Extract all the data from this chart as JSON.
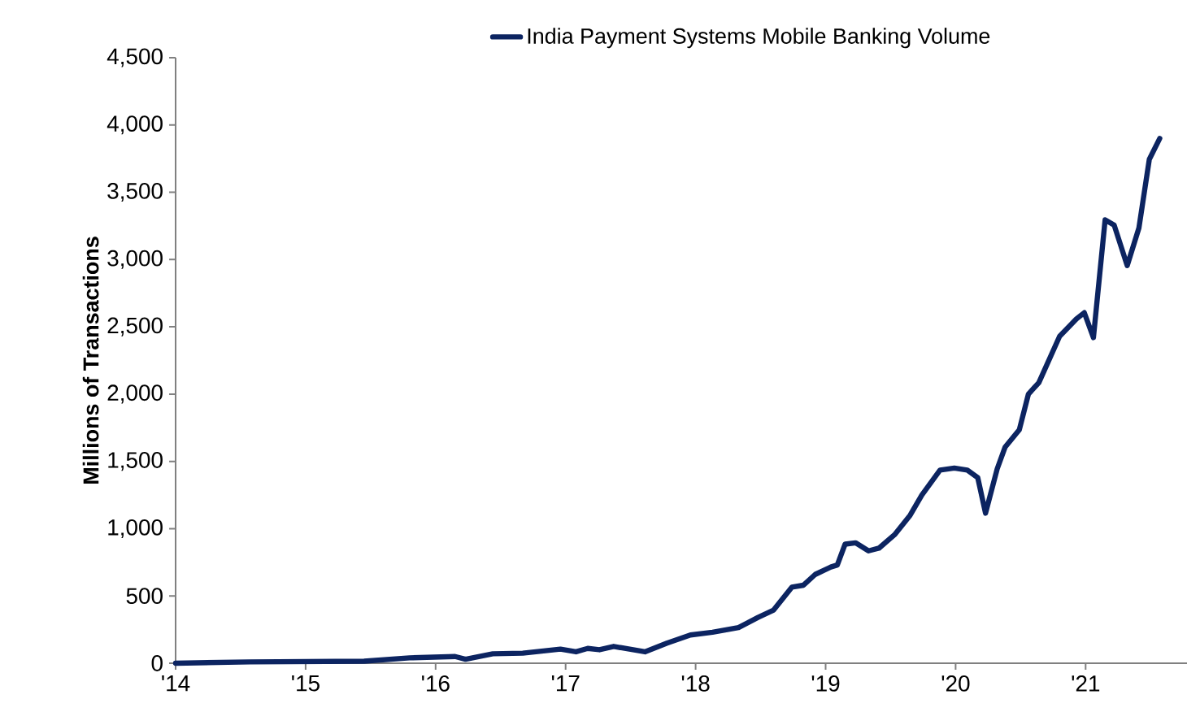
{
  "chart_data": {
    "type": "line",
    "ylabel": "Millions of Transactions",
    "legend": "top",
    "xlim": [
      2014,
      2021.78
    ],
    "ylim": [
      0,
      4500
    ],
    "xticks": [
      {
        "value": 2014,
        "label": "'14"
      },
      {
        "value": 2015,
        "label": "'15"
      },
      {
        "value": 2016,
        "label": "'16"
      },
      {
        "value": 2017,
        "label": "'17"
      },
      {
        "value": 2018,
        "label": "'18"
      },
      {
        "value": 2019,
        "label": "'19"
      },
      {
        "value": 2020,
        "label": "'20"
      },
      {
        "value": 2021,
        "label": "'21"
      }
    ],
    "yticks": [
      0,
      500,
      {
        "value": 1000,
        "label": "1,000"
      },
      {
        "value": 1500,
        "label": "1,500"
      },
      {
        "value": 2000,
        "label": "2,000"
      },
      {
        "value": 2500,
        "label": "2,500"
      },
      {
        "value": 3000,
        "label": "3,000"
      },
      {
        "value": 3500,
        "label": "3,500"
      },
      {
        "value": 4000,
        "label": "4,000"
      },
      {
        "value": 4500,
        "label": "4,500"
      }
    ],
    "series": [
      {
        "name": "India Payment Systems Mobile Banking Volume",
        "color": "#0c2461",
        "x": [
          2014.0,
          2014.57,
          2015.45,
          2015.8,
          2016.15,
          2016.23,
          2016.44,
          2016.67,
          2016.96,
          2017.08,
          2017.17,
          2017.26,
          2017.37,
          2017.61,
          2017.78,
          2017.96,
          2018.13,
          2018.33,
          2018.48,
          2018.6,
          2018.74,
          2018.83,
          2018.92,
          2019.04,
          2019.09,
          2019.15,
          2019.23,
          2019.33,
          2019.41,
          2019.53,
          2019.65,
          2019.74,
          2019.88,
          2019.99,
          2020.09,
          2020.17,
          2020.23,
          2020.32,
          2020.38,
          2020.49,
          2020.56,
          2020.64,
          2020.8,
          2020.93,
          2020.99,
          2021.06,
          2021.15,
          2021.22,
          2021.32,
          2021.41,
          2021.49,
          2021.57
        ],
        "values": [
          0,
          10,
          15,
          40,
          50,
          30,
          70,
          75,
          105,
          85,
          110,
          100,
          125,
          85,
          150,
          210,
          230,
          265,
          340,
          395,
          565,
          580,
          660,
          715,
          730,
          885,
          895,
          835,
          855,
          955,
          1100,
          1250,
          1435,
          1450,
          1435,
          1380,
          1115,
          1445,
          1605,
          1735,
          2000,
          2085,
          2430,
          2560,
          2605,
          2420,
          3295,
          3255,
          2955,
          3235,
          3745,
          3900
        ]
      }
    ]
  }
}
